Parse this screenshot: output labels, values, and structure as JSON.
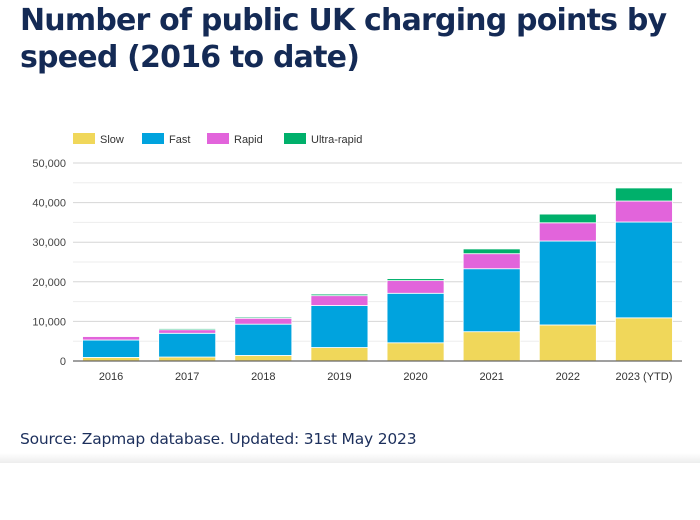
{
  "title": "Number of public UK charging points by speed (2016 to date)",
  "source": "Source: Zapmap database. Updated: 31st May 2023",
  "chart_data": {
    "type": "bar",
    "stacked": true,
    "title": "Number of public UK charging points by speed (2016 to date)",
    "xlabel": "",
    "ylabel": "",
    "ylim": [
      0,
      50000
    ],
    "yticks": [
      0,
      10000,
      20000,
      30000,
      40000,
      50000
    ],
    "ytick_labels": [
      "0",
      "10,000",
      "20,000",
      "30,000",
      "40,000",
      "50,000"
    ],
    "grid": true,
    "legend_position": "top-left",
    "categories": [
      "2016",
      "2017",
      "2018",
      "2019",
      "2020",
      "2021",
      "2022",
      "2023 (YTD)"
    ],
    "series": [
      {
        "name": "Slow",
        "color": "#f0d75a",
        "values": [
          900,
          1000,
          1400,
          3400,
          4600,
          7400,
          9100,
          10900
        ]
      },
      {
        "name": "Fast",
        "color": "#00a3de",
        "values": [
          4400,
          6000,
          7900,
          10600,
          12500,
          15900,
          21200,
          24200
        ]
      },
      {
        "name": "Rapid",
        "color": "#e264db",
        "values": [
          900,
          900,
          1500,
          2500,
          3200,
          3800,
          4600,
          5300
        ]
      },
      {
        "name": "Ultra-rapid",
        "color": "#00b06b",
        "values": [
          200,
          300,
          300,
          400,
          500,
          1200,
          2200,
          3300
        ]
      }
    ]
  }
}
